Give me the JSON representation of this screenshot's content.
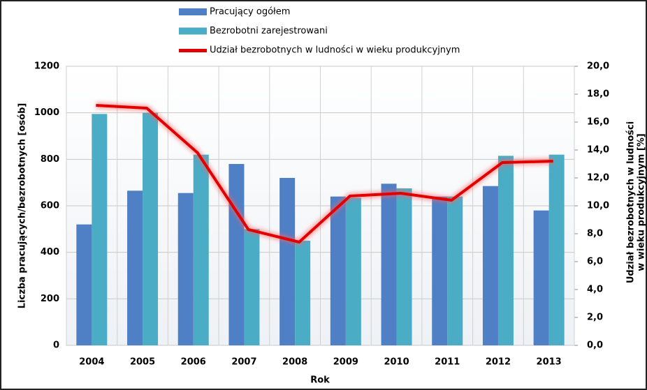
{
  "chart_data": {
    "type": "bar",
    "categories": [
      "2004",
      "2005",
      "2006",
      "2007",
      "2008",
      "2009",
      "2010",
      "2011",
      "2012",
      "2013"
    ],
    "series": [
      {
        "name": "Pracujący ogółem",
        "color": "#4f7fc4",
        "values": [
          520,
          665,
          655,
          780,
          720,
          640,
          695,
          640,
          685,
          580
        ]
      },
      {
        "name": "Bezrobotni zarejestrowani",
        "color": "#4bacc6",
        "values": [
          995,
          1000,
          820,
          500,
          450,
          635,
          675,
          640,
          815,
          820
        ]
      },
      {
        "name": "Udział bezrobotnych w ludności w wieku produkcyjnym",
        "color": "#e00000",
        "type": "line",
        "axis": "y2",
        "values": [
          17.2,
          17.0,
          13.8,
          8.3,
          7.4,
          10.7,
          10.9,
          10.4,
          13.1,
          13.2
        ]
      }
    ],
    "xlabel": "Rok",
    "ylabel": "Liczba pracujących/bezrobotnych [osób]",
    "y2label": [
      "Udział bezrobotnych w ludności",
      "w wieku produkcyjnym [%]"
    ],
    "ylim": [
      0,
      1200
    ],
    "yticks": [
      0,
      200,
      400,
      600,
      800,
      1000,
      1200
    ],
    "y2lim": [
      0,
      20
    ],
    "y2ticks": [
      {
        "value": 0,
        "label": "0,0"
      },
      {
        "value": 2,
        "label": "2,0"
      },
      {
        "value": 4,
        "label": "4,0"
      },
      {
        "value": 6,
        "label": "6,0"
      },
      {
        "value": 8,
        "label": "8,0"
      },
      {
        "value": 10,
        "label": "10,0"
      },
      {
        "value": 12,
        "label": "12,0"
      },
      {
        "value": 14,
        "label": "14,0"
      },
      {
        "value": 16,
        "label": "16,0"
      },
      {
        "value": 18,
        "label": "18,0"
      },
      {
        "value": 20,
        "label": "20,0"
      }
    ],
    "grid": true
  }
}
